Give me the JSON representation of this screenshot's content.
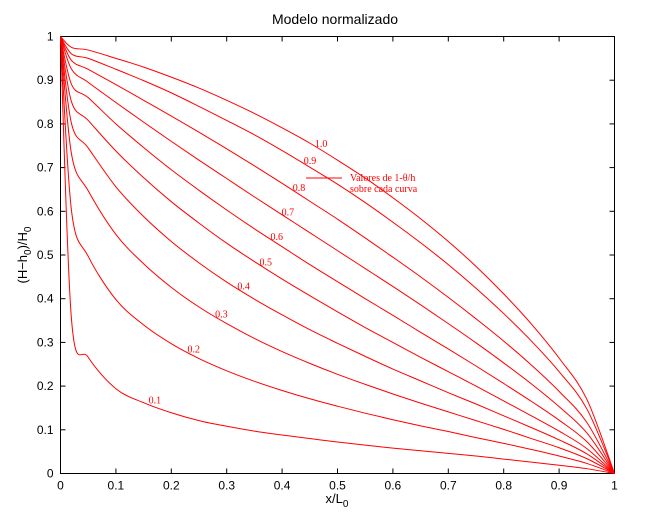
{
  "chart_data": {
    "type": "line",
    "title": "Modelo normalizado",
    "xlabel": {
      "main": "x/L",
      "sub": "0"
    },
    "ylabel": {
      "p1": "(H−h",
      "s1": "0",
      "p2": ")/H",
      "s2": "0"
    },
    "xlim": [
      0,
      1
    ],
    "ylim": [
      0,
      1
    ],
    "xticks": [
      "0",
      "0.1",
      "0.2",
      "0.3",
      "0.4",
      "0.5",
      "0.6",
      "0.7",
      "0.8",
      "0.9",
      "1"
    ],
    "yticks": [
      "0",
      "0.1",
      "0.2",
      "0.3",
      "0.4",
      "0.5",
      "0.6",
      "0.7",
      "0.8",
      "0.9",
      "1"
    ],
    "grid": false,
    "legend": {
      "line1": "Valores de 1-θ/h",
      "line2": "sobre cada curva",
      "color": "#ff0000",
      "position": "upper-right"
    },
    "line_color": "#ff0000",
    "x": [
      0,
      0.02,
      0.05,
      0.1,
      0.15,
      0.2,
      0.25,
      0.3,
      0.35,
      0.4,
      0.45,
      0.5,
      0.55,
      0.6,
      0.65,
      0.7,
      0.75,
      0.8,
      0.85,
      0.9,
      0.95,
      1.0
    ],
    "series": [
      {
        "label": "0.1",
        "label_at": 0.17,
        "values": [
          1.0,
          0.35,
          0.266,
          0.194,
          0.162,
          0.139,
          0.121,
          0.108,
          0.097,
          0.088,
          0.08,
          0.072,
          0.065,
          0.058,
          0.052,
          0.046,
          0.04,
          0.033,
          0.026,
          0.019,
          0.011,
          0.0
        ]
      },
      {
        "label": "0.2",
        "label_at": 0.24,
        "values": [
          1.0,
          0.6,
          0.497,
          0.398,
          0.34,
          0.297,
          0.263,
          0.235,
          0.211,
          0.19,
          0.171,
          0.154,
          0.138,
          0.123,
          0.109,
          0.096,
          0.082,
          0.069,
          0.055,
          0.04,
          0.023,
          0.0
        ]
      },
      {
        "label": "0.3",
        "label_at": 0.29,
        "values": [
          1.0,
          0.73,
          0.647,
          0.547,
          0.48,
          0.426,
          0.381,
          0.343,
          0.309,
          0.279,
          0.252,
          0.227,
          0.204,
          0.182,
          0.161,
          0.141,
          0.121,
          0.101,
          0.08,
          0.059,
          0.034,
          0.0
        ]
      },
      {
        "label": "0.4",
        "label_at": 0.33,
        "values": [
          1.0,
          0.8,
          0.745,
          0.656,
          0.588,
          0.531,
          0.482,
          0.438,
          0.399,
          0.363,
          0.329,
          0.298,
          0.268,
          0.239,
          0.212,
          0.185,
          0.159,
          0.132,
          0.105,
          0.077,
          0.045,
          0.0
        ]
      },
      {
        "label": "0.5",
        "label_at": 0.37,
        "values": [
          1.0,
          0.85,
          0.808,
          0.738,
          0.677,
          0.622,
          0.573,
          0.527,
          0.485,
          0.445,
          0.407,
          0.37,
          0.334,
          0.3,
          0.266,
          0.233,
          0.2,
          0.166,
          0.132,
          0.097,
          0.057,
          0.0
        ]
      },
      {
        "label": "0.6",
        "label_at": 0.39,
        "values": [
          1.0,
          0.89,
          0.86,
          0.8,
          0.746,
          0.695,
          0.648,
          0.603,
          0.56,
          0.519,
          0.478,
          0.439,
          0.4,
          0.362,
          0.323,
          0.285,
          0.246,
          0.206,
          0.165,
          0.122,
          0.073,
          0.0
        ]
      },
      {
        "label": "0.7",
        "label_at": 0.41,
        "values": [
          1.0,
          0.925,
          0.895,
          0.849,
          0.804,
          0.76,
          0.717,
          0.675,
          0.633,
          0.592,
          0.551,
          0.51,
          0.469,
          0.428,
          0.386,
          0.343,
          0.299,
          0.253,
          0.205,
          0.153,
          0.093,
          0.0
        ]
      },
      {
        "label": "0.8",
        "label_at": 0.43,
        "values": [
          1.0,
          0.945,
          0.925,
          0.89,
          0.854,
          0.818,
          0.781,
          0.743,
          0.704,
          0.664,
          0.623,
          0.582,
          0.539,
          0.495,
          0.45,
          0.403,
          0.354,
          0.303,
          0.248,
          0.188,
          0.117,
          0.0
        ]
      },
      {
        "label": "0.9",
        "label_at": 0.45,
        "values": [
          1.0,
          0.96,
          0.95,
          0.925,
          0.899,
          0.871,
          0.84,
          0.808,
          0.775,
          0.739,
          0.701,
          0.662,
          0.62,
          0.575,
          0.528,
          0.478,
          0.424,
          0.366,
          0.303,
          0.233,
          0.148,
          0.0
        ]
      },
      {
        "label": "1.0",
        "label_at": 0.47,
        "values": [
          1.0,
          0.975,
          0.969,
          0.95,
          0.93,
          0.907,
          0.882,
          0.854,
          0.824,
          0.791,
          0.756,
          0.717,
          0.676,
          0.631,
          0.583,
          0.531,
          0.474,
          0.411,
          0.342,
          0.264,
          0.17,
          0.0
        ]
      }
    ]
  }
}
